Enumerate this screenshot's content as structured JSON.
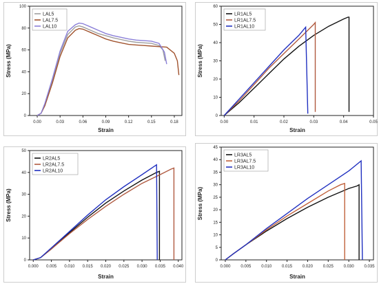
{
  "charts": [
    {
      "type": "line",
      "xlabel": "Strain",
      "ylabel": "Stress (MPa)",
      "xlim": [
        -0.01,
        0.19
      ],
      "ylim": [
        0,
        100
      ],
      "xticks": [
        0.0,
        0.03,
        0.06,
        0.09,
        0.12,
        0.15,
        0.18
      ],
      "xtick_labels": [
        "0.00",
        "0.03",
        "0.06",
        "0.09",
        "0.12",
        "0.15",
        "0.18"
      ],
      "yticks": [
        0,
        20,
        40,
        60,
        80,
        100
      ],
      "ytick_labels": [
        "0",
        "20",
        "40",
        "60",
        "80",
        "100"
      ],
      "legend_position": "top-left",
      "series": [
        {
          "name": "LAL5",
          "color": "#9e9e9e",
          "x": [
            0,
            0.005,
            0.01,
            0.02,
            0.03,
            0.04,
            0.05,
            0.055,
            0.06,
            0.07,
            0.08,
            0.09,
            0.1,
            0.11,
            0.12,
            0.13,
            0.14,
            0.15,
            0.16,
            0.165,
            0.168
          ],
          "y": [
            0,
            2,
            10,
            32,
            57,
            74,
            81,
            82,
            81,
            78,
            75,
            73,
            71,
            69.5,
            68,
            67,
            66.5,
            66,
            64,
            60,
            50
          ]
        },
        {
          "name": "LAL7.5",
          "color": "#a0522d",
          "x": [
            0,
            0.005,
            0.01,
            0.02,
            0.03,
            0.04,
            0.05,
            0.055,
            0.06,
            0.07,
            0.08,
            0.09,
            0.1,
            0.11,
            0.12,
            0.13,
            0.14,
            0.15,
            0.16,
            0.17,
            0.18,
            0.184,
            0.186
          ],
          "y": [
            0,
            2,
            9,
            30,
            54,
            71,
            78,
            79.5,
            79,
            76,
            73,
            70,
            68,
            66.5,
            65,
            64.5,
            64,
            63.5,
            63,
            62.5,
            57,
            50,
            37
          ]
        },
        {
          "name": "LAL10",
          "color": "#8a7fd8",
          "x": [
            0,
            0.005,
            0.01,
            0.02,
            0.03,
            0.04,
            0.05,
            0.055,
            0.06,
            0.07,
            0.08,
            0.09,
            0.1,
            0.11,
            0.12,
            0.13,
            0.14,
            0.15,
            0.16,
            0.167,
            0.17
          ],
          "y": [
            0,
            2,
            11,
            34,
            59,
            77,
            83,
            84.5,
            84,
            81,
            78,
            75,
            73,
            71.5,
            70,
            69,
            68.5,
            68,
            66,
            58,
            47
          ]
        }
      ]
    },
    {
      "type": "line",
      "xlabel": "Strain",
      "ylabel": "Stress (MPa)",
      "xlim": [
        -0.001,
        0.05
      ],
      "ylim": [
        0,
        60
      ],
      "xticks": [
        0.0,
        0.01,
        0.02,
        0.03,
        0.04,
        0.05
      ],
      "xtick_labels": [
        "0.00",
        "0.01",
        "0.02",
        "0.03",
        "0.04",
        "0.05"
      ],
      "yticks": [
        0,
        10,
        20,
        30,
        40,
        50,
        60
      ],
      "ytick_labels": [
        "0",
        "10",
        "20",
        "30",
        "40",
        "50",
        "60"
      ],
      "legend_position": "top-left",
      "series": [
        {
          "name": "LR1AL5",
          "color": "#111111",
          "x": [
            0,
            0.005,
            0.01,
            0.015,
            0.02,
            0.025,
            0.03,
            0.035,
            0.04,
            0.0415,
            0.0418,
            0.0418
          ],
          "y": [
            0,
            7,
            15,
            23,
            31,
            38,
            44,
            49,
            53,
            54,
            54,
            2
          ]
        },
        {
          "name": "LR1AL7.5",
          "color": "#b05a40",
          "x": [
            0,
            0.005,
            0.01,
            0.015,
            0.02,
            0.025,
            0.03,
            0.0305,
            0.0305
          ],
          "y": [
            0,
            8,
            17,
            26,
            34,
            42,
            50,
            51,
            2
          ]
        },
        {
          "name": "LR1AL10",
          "color": "#2030c0",
          "x": [
            0,
            0.005,
            0.01,
            0.015,
            0.02,
            0.025,
            0.0273,
            0.028
          ],
          "y": [
            0,
            9,
            18,
            27,
            36,
            44,
            48.5,
            1
          ]
        }
      ]
    },
    {
      "type": "line",
      "xlabel": "Strain",
      "ylabel": "Stress (MPa)",
      "xlim": [
        -0.001,
        0.041
      ],
      "ylim": [
        0,
        50
      ],
      "xticks": [
        0.0,
        0.005,
        0.01,
        0.015,
        0.02,
        0.025,
        0.03,
        0.035,
        0.04
      ],
      "xtick_labels": [
        "0.000",
        "0.005",
        "0.010",
        "0.015",
        "0.020",
        "0.025",
        "0.030",
        "0.035",
        "0.040"
      ],
      "yticks": [
        0,
        10,
        20,
        30,
        40,
        50
      ],
      "ytick_labels": [
        "0",
        "10",
        "20",
        "30",
        "40",
        "50"
      ],
      "legend_position": "top-left",
      "series": [
        {
          "name": "LR2AL5",
          "color": "#111111",
          "x": [
            0,
            0.002,
            0.005,
            0.01,
            0.015,
            0.02,
            0.025,
            0.03,
            0.034,
            0.0348,
            0.0348
          ],
          "y": [
            0,
            1,
            5,
            12.5,
            19.5,
            26,
            31.5,
            36.5,
            40,
            40.5,
            0
          ]
        },
        {
          "name": "LR2AL7.5",
          "color": "#b05a40",
          "x": [
            0,
            0.002,
            0.005,
            0.01,
            0.015,
            0.02,
            0.025,
            0.03,
            0.035,
            0.038,
            0.0388,
            0.0388
          ],
          "y": [
            0,
            1,
            5,
            12,
            18.5,
            24.5,
            30,
            35,
            39,
            41.5,
            42,
            0
          ]
        },
        {
          "name": "LR2AL10",
          "color": "#2030c0",
          "x": [
            0,
            0.002,
            0.005,
            0.01,
            0.015,
            0.02,
            0.025,
            0.03,
            0.034,
            0.0342
          ],
          "y": [
            0,
            1,
            5.5,
            13,
            20.5,
            27.5,
            33.5,
            39,
            43.5,
            0
          ]
        }
      ]
    },
    {
      "type": "line",
      "xlabel": "Strain",
      "ylabel": "Stress (MPa)",
      "xlim": [
        -0.001,
        0.036
      ],
      "ylim": [
        0,
        45
      ],
      "xticks": [
        0.0,
        0.005,
        0.01,
        0.015,
        0.02,
        0.025,
        0.03,
        0.035
      ],
      "xtick_labels": [
        "0.000",
        "0.005",
        "0.010",
        "0.015",
        "0.020",
        "0.025",
        "0.030",
        "0.035"
      ],
      "yticks": [
        0,
        5,
        10,
        15,
        20,
        25,
        30,
        35,
        40,
        45
      ],
      "ytick_labels": [
        "0",
        "5",
        "10",
        "15",
        "20",
        "25",
        "30",
        "35",
        "40",
        "45"
      ],
      "legend_position": "top-left",
      "series": [
        {
          "name": "LR3AL5",
          "color": "#111111",
          "x": [
            0,
            0.002,
            0.005,
            0.01,
            0.015,
            0.02,
            0.025,
            0.03,
            0.032,
            0.0325,
            0.0325
          ],
          "y": [
            0,
            2.5,
            6,
            11.5,
            16.5,
            21,
            25,
            28.5,
            29.5,
            30,
            0
          ]
        },
        {
          "name": "LR3AL7.5",
          "color": "#c0603a",
          "x": [
            0,
            0.002,
            0.005,
            0.01,
            0.015,
            0.02,
            0.025,
            0.028,
            0.029,
            0.029
          ],
          "y": [
            0,
            2.5,
            6,
            12,
            17.5,
            22.5,
            27.5,
            30,
            30.5,
            0
          ]
        },
        {
          "name": "LR3AL10",
          "color": "#2030c0",
          "x": [
            0,
            0.002,
            0.005,
            0.01,
            0.015,
            0.02,
            0.025,
            0.03,
            0.033,
            0.0333
          ],
          "y": [
            0,
            2.5,
            6,
            12.5,
            18.5,
            24.5,
            30,
            35.5,
            39.5,
            0
          ]
        }
      ]
    }
  ]
}
